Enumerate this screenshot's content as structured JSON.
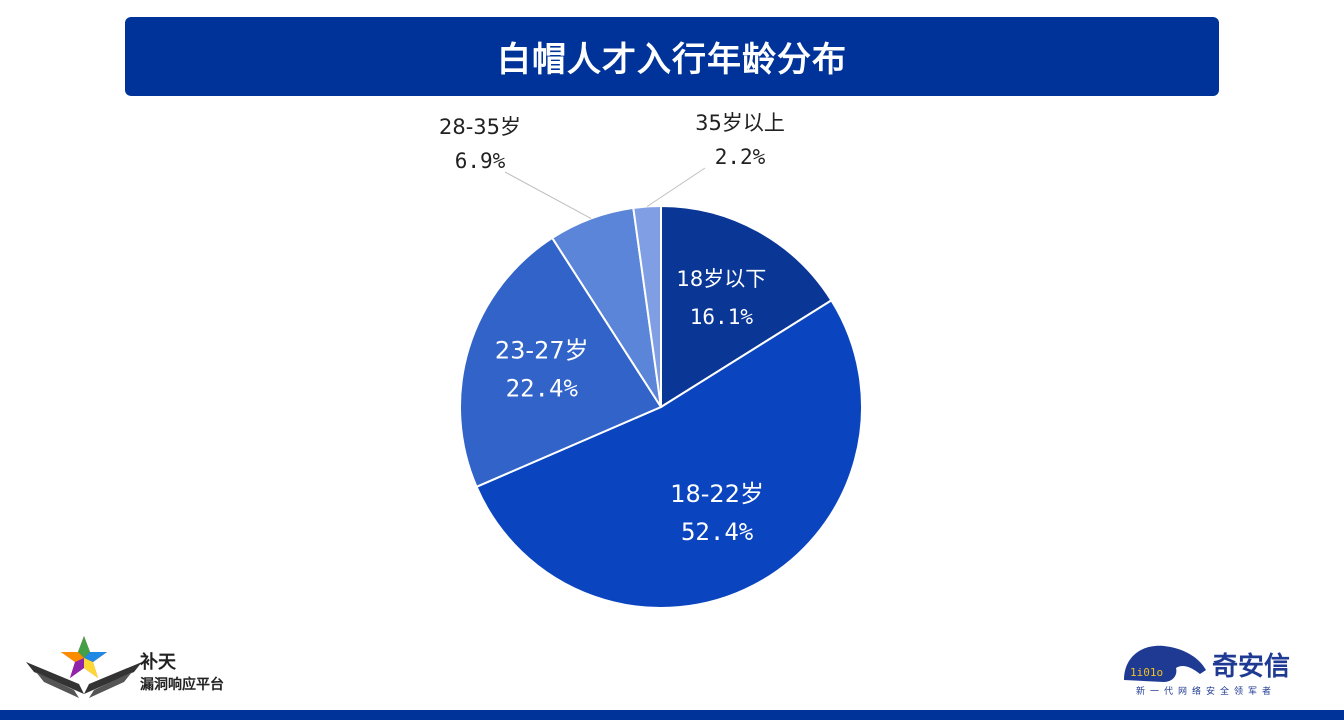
{
  "header": {
    "title": "白帽人才入行年龄分布"
  },
  "chart_data": {
    "type": "pie",
    "title": "白帽人才入行年龄分布",
    "start_angle_deg": 0,
    "direction": "clockwise",
    "slices": [
      {
        "label": "18岁以下",
        "percent_label": "16.1%",
        "value": 16.1,
        "color": "#0a3696",
        "label_position": "inside"
      },
      {
        "label": "18-22岁",
        "percent_label": "52.4%",
        "value": 52.4,
        "color": "#0a44bf",
        "label_position": "inside"
      },
      {
        "label": "23-27岁",
        "percent_label": "22.4%",
        "value": 22.4,
        "color": "#3163c8",
        "label_position": "inside"
      },
      {
        "label": "28-35岁",
        "percent_label": "6.9%",
        "value": 6.9,
        "color": "#5a85d9",
        "label_position": "outside"
      },
      {
        "label": "35岁以上",
        "percent_label": "2.2%",
        "value": 2.2,
        "color": "#7f9ee4",
        "label_position": "outside"
      }
    ]
  },
  "footer": {
    "left_logo": {
      "name": "补天",
      "subtitle": "漏洞响应平台",
      "icon": "butian-star-wings-icon"
    },
    "right_logo": {
      "name": "奇安信",
      "slogan": "新一代网络安全领军者",
      "icon": "qax-lion-icon"
    },
    "band_color": "#00339a"
  }
}
